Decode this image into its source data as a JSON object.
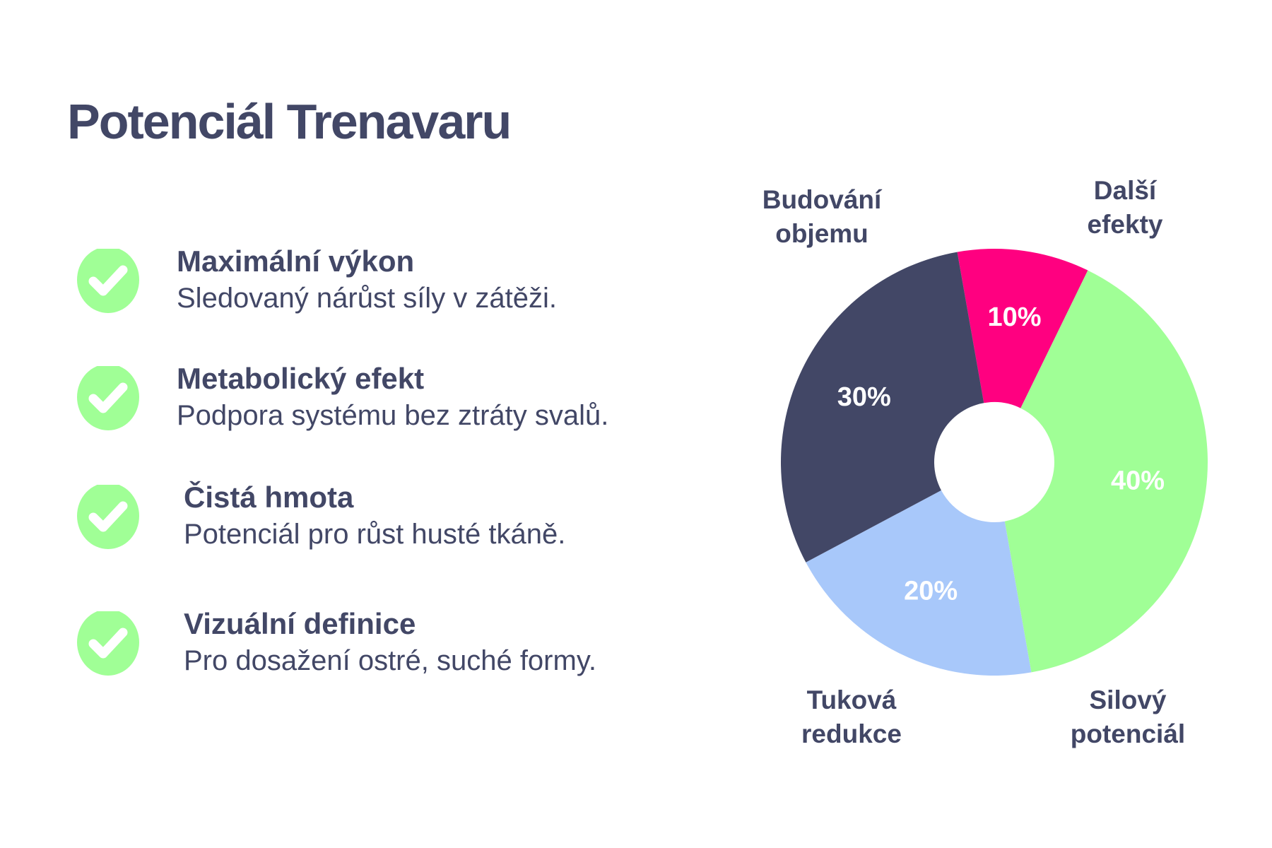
{
  "title": "Potenciál Trenavaru",
  "features": [
    {
      "title": "Maximální výkon",
      "description": "Sledovaný nárůst síly v zátěži."
    },
    {
      "title": "Metabolický efekt",
      "description": "Podpora systému bez ztráty svalů."
    },
    {
      "title": "Čistá hmota",
      "description": "Potenciál pro růst husté tkáně."
    },
    {
      "title": "Vizuální definice",
      "description": "Pro dosažení ostré, suché formy."
    }
  ],
  "chart_data": {
    "type": "donut",
    "categories": [
      "Další efekty",
      "Silový potenciál",
      "Tuková redukce",
      "Budování objemu"
    ],
    "values": [
      10,
      40,
      20,
      30
    ],
    "value_labels": [
      "10%",
      "40%",
      "20%",
      "30%"
    ],
    "colors": [
      "#ff0080",
      "#a0ff96",
      "#a8c8fa",
      "#424766"
    ]
  }
}
